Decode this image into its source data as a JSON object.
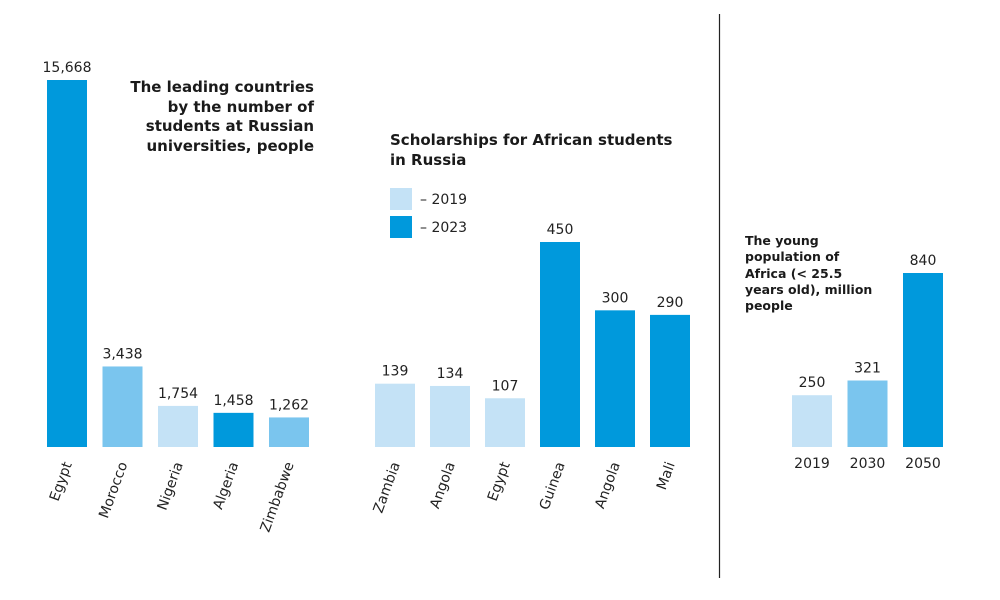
{
  "chart_data": [
    {
      "type": "bar",
      "title": "The leading countries by the number of students at Russian universities, people",
      "categories": [
        "Egypt",
        "Morocco",
        "Nigeria",
        "Algeria",
        "Zimbabwe"
      ],
      "values": [
        15668,
        3438,
        1754,
        1458,
        1262
      ],
      "value_labels": [
        "15,668",
        "3,438",
        "1,754",
        "1,458",
        "1,262"
      ],
      "colors": [
        "#0099dc",
        "#7ac5ee",
        "#c4e2f6",
        "#0099dc",
        "#7ac5ee"
      ]
    },
    {
      "type": "bar",
      "title": "Scholarships for African students in Russia",
      "categories": [
        "Zambia",
        "Angola",
        "Egypt",
        "Guinea",
        "Angola",
        "Mali"
      ],
      "series": [
        {
          "name": "– 2019",
          "color": "#c4e2f6",
          "values": [
            139,
            134,
            107,
            null,
            null,
            null
          ]
        },
        {
          "name": "– 2023",
          "color": "#0099dc",
          "values": [
            null,
            null,
            null,
            450,
            300,
            290
          ]
        }
      ]
    },
    {
      "type": "bar",
      "title": "The young population of Africa (< 25.5 years old), million people",
      "categories": [
        "2019",
        "2030",
        "2050"
      ],
      "values": [
        250,
        321,
        840
      ],
      "colors": [
        "#c4e2f6",
        "#7ac5ee",
        "#0099dc"
      ]
    }
  ]
}
